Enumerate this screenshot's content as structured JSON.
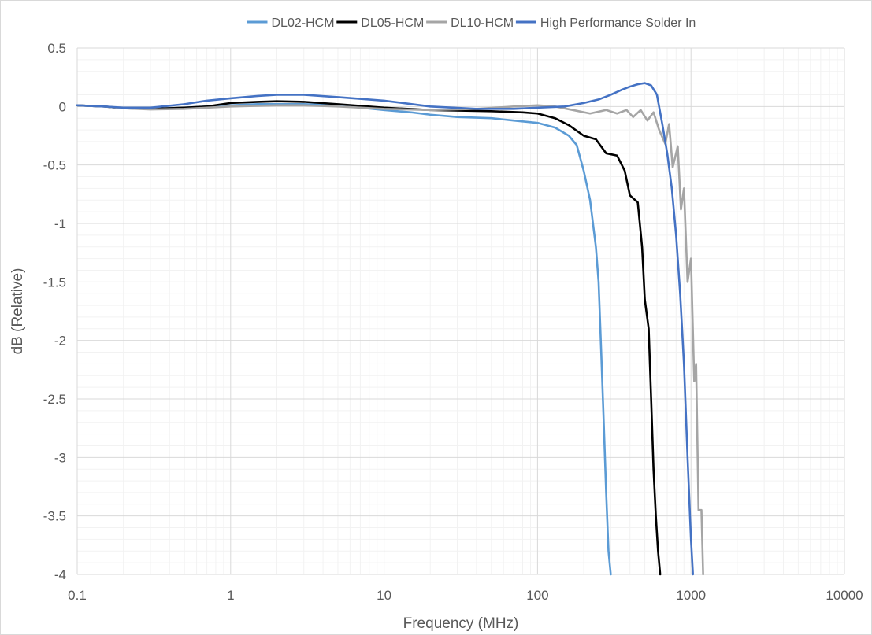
{
  "chart_data": {
    "type": "line",
    "title": "",
    "xlabel": "Frequency (MHz)",
    "ylabel": "dB (Relative)",
    "x_scale": "log",
    "xlim": [
      0.1,
      10000
    ],
    "ylim": [
      -4,
      0.5
    ],
    "x_ticks": [
      0.1,
      1,
      10,
      100,
      1000,
      10000
    ],
    "x_tick_labels": [
      "0.1",
      "1",
      "10",
      "100",
      "1000",
      "10000"
    ],
    "y_ticks": [
      0.5,
      0,
      -0.5,
      -1,
      -1.5,
      -2,
      -2.5,
      -3,
      -3.5,
      -4
    ],
    "y_tick_labels": [
      "0.5",
      "0",
      "-0.5",
      "-1",
      "-1.5",
      "-2",
      "-2.5",
      "-3",
      "-3.5",
      "-4"
    ],
    "grid": true,
    "legend_position": "top",
    "series": [
      {
        "name": "DL02-HCM",
        "color": "#5b9bd5",
        "points": [
          [
            0.1,
            0.01
          ],
          [
            0.15,
            0.0
          ],
          [
            0.2,
            -0.015
          ],
          [
            0.3,
            -0.02
          ],
          [
            0.5,
            -0.01
          ],
          [
            0.7,
            0.0
          ],
          [
            1,
            0.01
          ],
          [
            1.5,
            0.02
          ],
          [
            2,
            0.02
          ],
          [
            3,
            0.02
          ],
          [
            5,
            0.01
          ],
          [
            10,
            -0.03
          ],
          [
            15,
            -0.05
          ],
          [
            20,
            -0.07
          ],
          [
            30,
            -0.09
          ],
          [
            50,
            -0.1
          ],
          [
            70,
            -0.12
          ],
          [
            100,
            -0.14
          ],
          [
            130,
            -0.18
          ],
          [
            160,
            -0.25
          ],
          [
            180,
            -0.33
          ],
          [
            200,
            -0.55
          ],
          [
            220,
            -0.8
          ],
          [
            240,
            -1.2
          ],
          [
            250,
            -1.5
          ],
          [
            260,
            -2.1
          ],
          [
            270,
            -2.7
          ],
          [
            280,
            -3.3
          ],
          [
            290,
            -3.8
          ],
          [
            300,
            -4.0
          ]
        ]
      },
      {
        "name": "DL05-HCM",
        "color": "#000000",
        "points": [
          [
            0.1,
            0.01
          ],
          [
            0.15,
            0.0
          ],
          [
            0.2,
            -0.015
          ],
          [
            0.3,
            -0.02
          ],
          [
            0.5,
            -0.01
          ],
          [
            0.7,
            0.0
          ],
          [
            1,
            0.03
          ],
          [
            1.5,
            0.04
          ],
          [
            2,
            0.045
          ],
          [
            3,
            0.04
          ],
          [
            5,
            0.02
          ],
          [
            10,
            -0.01
          ],
          [
            20,
            -0.03
          ],
          [
            50,
            -0.04
          ],
          [
            80,
            -0.05
          ],
          [
            100,
            -0.06
          ],
          [
            130,
            -0.1
          ],
          [
            160,
            -0.16
          ],
          [
            200,
            -0.25
          ],
          [
            240,
            -0.28
          ],
          [
            280,
            -0.4
          ],
          [
            330,
            -0.42
          ],
          [
            370,
            -0.55
          ],
          [
            400,
            -0.76
          ],
          [
            450,
            -0.82
          ],
          [
            480,
            -1.2
          ],
          [
            500,
            -1.65
          ],
          [
            530,
            -1.9
          ],
          [
            550,
            -2.5
          ],
          [
            570,
            -3.1
          ],
          [
            590,
            -3.5
          ],
          [
            610,
            -3.8
          ],
          [
            630,
            -4.0
          ]
        ]
      },
      {
        "name": "DL10-HCM",
        "color": "#a5a5a5",
        "points": [
          [
            0.1,
            0.01
          ],
          [
            0.15,
            0.0
          ],
          [
            0.2,
            -0.015
          ],
          [
            0.3,
            -0.025
          ],
          [
            0.5,
            -0.02
          ],
          [
            0.7,
            -0.01
          ],
          [
            1,
            0.0
          ],
          [
            2,
            0.01
          ],
          [
            3,
            0.01
          ],
          [
            5,
            0.0
          ],
          [
            10,
            -0.02
          ],
          [
            20,
            -0.03
          ],
          [
            40,
            -0.02
          ],
          [
            70,
            0.0
          ],
          [
            100,
            0.01
          ],
          [
            130,
            0.0
          ],
          [
            170,
            -0.03
          ],
          [
            220,
            -0.06
          ],
          [
            280,
            -0.03
          ],
          [
            330,
            -0.06
          ],
          [
            380,
            -0.03
          ],
          [
            420,
            -0.09
          ],
          [
            470,
            -0.03
          ],
          [
            520,
            -0.12
          ],
          [
            570,
            -0.05
          ],
          [
            620,
            -0.2
          ],
          [
            680,
            -0.32
          ],
          [
            720,
            -0.15
          ],
          [
            760,
            -0.52
          ],
          [
            820,
            -0.34
          ],
          [
            860,
            -0.88
          ],
          [
            900,
            -0.7
          ],
          [
            950,
            -1.5
          ],
          [
            1000,
            -1.3
          ],
          [
            1050,
            -2.35
          ],
          [
            1080,
            -2.2
          ],
          [
            1120,
            -3.45
          ],
          [
            1170,
            -3.45
          ],
          [
            1200,
            -4.0
          ]
        ]
      },
      {
        "name": "High Performance Solder In",
        "color": "#4472c4",
        "points": [
          [
            0.1,
            0.01
          ],
          [
            0.15,
            0.0
          ],
          [
            0.2,
            -0.01
          ],
          [
            0.3,
            -0.01
          ],
          [
            0.5,
            0.02
          ],
          [
            0.7,
            0.05
          ],
          [
            1,
            0.07
          ],
          [
            1.5,
            0.09
          ],
          [
            2,
            0.1
          ],
          [
            3,
            0.1
          ],
          [
            5,
            0.08
          ],
          [
            10,
            0.05
          ],
          [
            20,
            0.0
          ],
          [
            40,
            -0.02
          ],
          [
            70,
            -0.02
          ],
          [
            100,
            -0.01
          ],
          [
            150,
            0.0
          ],
          [
            200,
            0.03
          ],
          [
            250,
            0.06
          ],
          [
            300,
            0.1
          ],
          [
            350,
            0.14
          ],
          [
            400,
            0.17
          ],
          [
            450,
            0.19
          ],
          [
            500,
            0.2
          ],
          [
            550,
            0.18
          ],
          [
            600,
            0.1
          ],
          [
            650,
            -0.15
          ],
          [
            700,
            -0.4
          ],
          [
            750,
            -0.7
          ],
          [
            800,
            -1.1
          ],
          [
            850,
            -1.6
          ],
          [
            900,
            -2.2
          ],
          [
            950,
            -3.0
          ],
          [
            1000,
            -3.7
          ],
          [
            1030,
            -4.0
          ]
        ]
      }
    ]
  }
}
